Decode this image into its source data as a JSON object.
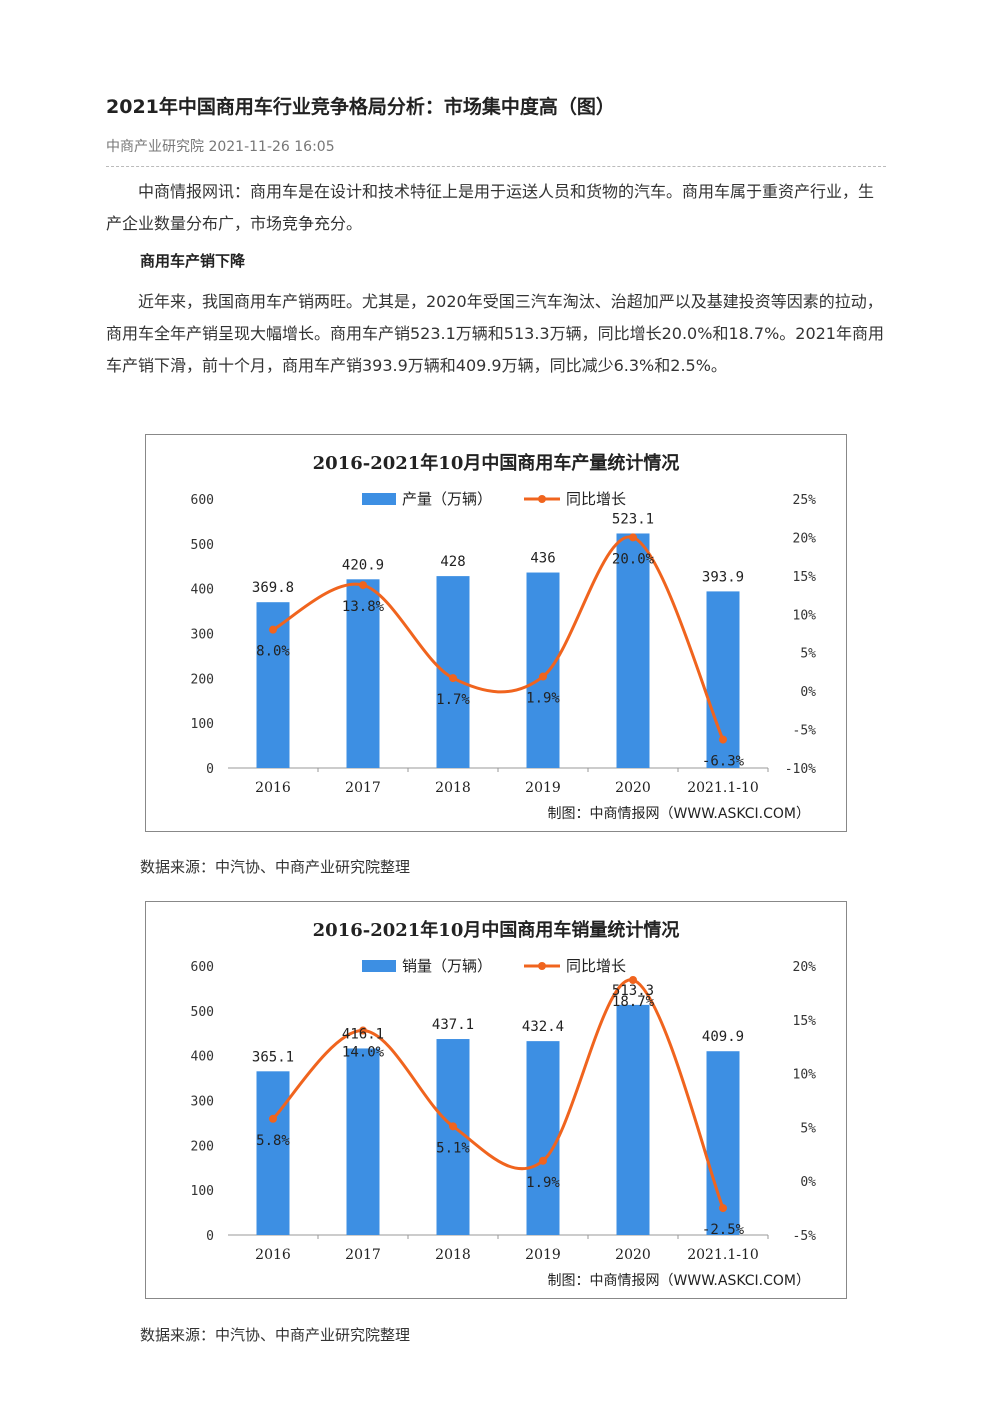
{
  "article": {
    "title": "2021年中国商用车行业竞争格局分析：市场集中度高（图）",
    "meta": "中商产业研究院 2021-11-26 16:05",
    "intro": "中商情报网讯：商用车是在设计和技术特征上是用于运送人员和货物的汽车。商用车属于重资产行业，生产企业数量分布广，市场竞争充分。",
    "section_heading": "商用车产销下降",
    "body": "近年来，我国商用车产销两旺。尤其是，2020年受国三汽车淘汰、治超加严以及基建投资等因素的拉动，商用车全年产销呈现大幅增长。商用车产销523.1万辆和513.3万辆，同比增长20.0%和18.7%。2021年商用车产销下滑，前十个月，商用车产销393.9万辆和409.9万辆，同比减少6.3%和2.5%。",
    "source1": "数据来源：中汽协、中商产业研究院整理",
    "source2": "数据来源：中汽协、中商产业研究院整理"
  },
  "chart_data": [
    {
      "type": "bar",
      "title": "2016-2021年10月中国商用车产量统计情况",
      "categories": [
        "2016",
        "2017",
        "2018",
        "2019",
        "2020",
        "2021.1-10"
      ],
      "series": [
        {
          "name": "产量（万辆）",
          "type": "bar",
          "axis": "left",
          "values": [
            369.8,
            420.9,
            428,
            436,
            523.1,
            393.9
          ],
          "labels": [
            "369.8",
            "420.9",
            "428",
            "436",
            "523.1",
            "393.9"
          ]
        },
        {
          "name": "同比增长",
          "type": "line",
          "axis": "right",
          "values": [
            8.0,
            13.8,
            1.7,
            1.9,
            20.0,
            -6.3
          ],
          "labels": [
            "8.0%",
            "13.8%",
            "1.7%",
            "1.9%",
            "20.0%",
            "-6.3%"
          ]
        }
      ],
      "left_ticks": [
        "0",
        "100",
        "200",
        "300",
        "400",
        "500",
        "600"
      ],
      "right_ticks": [
        "-10%",
        "-5%",
        "0%",
        "5%",
        "10%",
        "15%",
        "20%",
        "25%"
      ],
      "ylim": [
        0,
        600
      ],
      "ylim_right": [
        -10,
        25
      ],
      "legend_position": "top",
      "credit": "制图：中商情报网（WWW.ASKCI.COM）",
      "colors": {
        "bar": "#3d8fe3",
        "line": "#f0641e"
      }
    },
    {
      "type": "bar",
      "title": "2016-2021年10月中国商用车销量统计情况",
      "categories": [
        "2016",
        "2017",
        "2018",
        "2019",
        "2020",
        "2021.1-10"
      ],
      "series": [
        {
          "name": "销量（万辆）",
          "type": "bar",
          "axis": "left",
          "values": [
            365.1,
            416.1,
            437.1,
            432.4,
            513.3,
            409.9
          ],
          "labels": [
            "365.1",
            "416.1",
            "437.1",
            "432.4",
            "513.3",
            "409.9"
          ]
        },
        {
          "name": "同比增长",
          "type": "line",
          "axis": "right",
          "values": [
            5.8,
            14.0,
            5.1,
            1.9,
            18.7,
            -2.5
          ],
          "labels": [
            "5.8%",
            "14.0%",
            "5.1%",
            "1.9%",
            "18.7%",
            "-2.5%"
          ]
        }
      ],
      "left_ticks": [
        "0",
        "100",
        "200",
        "300",
        "400",
        "500",
        "600"
      ],
      "right_ticks": [
        "-5%",
        "0%",
        "5%",
        "10%",
        "15%",
        "20%"
      ],
      "ylim": [
        0,
        600
      ],
      "ylim_right": [
        -5,
        20
      ],
      "legend_position": "top",
      "credit": "制图：中商情报网（WWW.ASKCI.COM）",
      "colors": {
        "bar": "#3d8fe3",
        "line": "#f0641e"
      }
    }
  ]
}
